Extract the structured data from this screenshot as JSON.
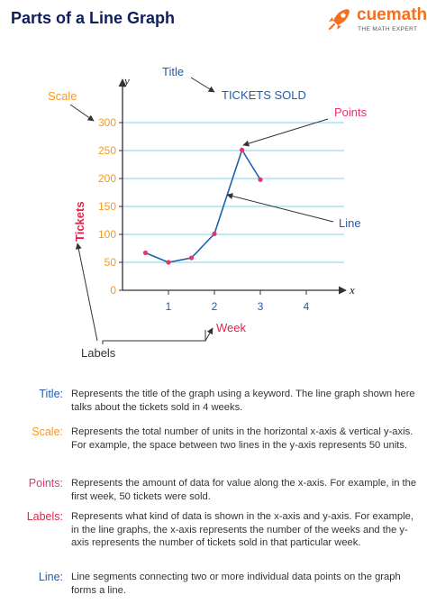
{
  "header": {
    "title": "Parts of a Line Graph",
    "brand_name": "cuemath",
    "brand_tagline": "THE MATH EXPERT"
  },
  "colors": {
    "title_navy": "#0f1f5c",
    "accent_blue": "#1f5fb0",
    "scale_orange": "#f59a23",
    "points_pink": "#e8336c",
    "labels_red": "#e0244c",
    "grid_cyan": "#7fd3ee",
    "brand_orange": "#f2701f"
  },
  "chart_data": {
    "type": "line",
    "title": "TICKETS SOLD",
    "xlabel": "Week",
    "ylabel": "Tickets",
    "x_axis_letter": "x",
    "y_axis_letter": "y",
    "x_ticks": [
      1,
      2,
      3,
      4
    ],
    "y_ticks": [
      0,
      50,
      100,
      150,
      200,
      250,
      300
    ],
    "xlim": [
      0,
      4.5
    ],
    "ylim": [
      0,
      300
    ],
    "grid": true,
    "series": [
      {
        "x": [
          0.5,
          1,
          1.5,
          2,
          2.6,
          3
        ],
        "y": [
          67,
          50,
          58,
          101,
          251,
          198
        ]
      }
    ],
    "annotations": [
      "Title",
      "Scale",
      "Points",
      "Line",
      "Labels"
    ]
  },
  "definitions": [
    {
      "term": "Title:",
      "desc": "Represents the title of the graph using a keyword. The line graph shown here talks about the tickets sold in 4 weeks."
    },
    {
      "term": "Scale:",
      "desc": "Represents the total number of units in the horizontal x-axis & vertical y-axis. For example, the space between two lines in the y-axis represents 50 units."
    },
    {
      "term": "Points:",
      "desc": "Represents the amount of data for value along the x-axis. For example, in the first week, 50 tickets were sold."
    },
    {
      "term": "Labels:",
      "desc": "Represents what kind of data is shown in the x-axis and y-axis. For example, in the line graphs, the x-axis represents the number of the weeks and the y-axis represents the number of tickets sold in that particular week."
    },
    {
      "term": "Line:",
      "desc": "Line segments connecting two or more individual data points on the graph forms a line."
    }
  ]
}
